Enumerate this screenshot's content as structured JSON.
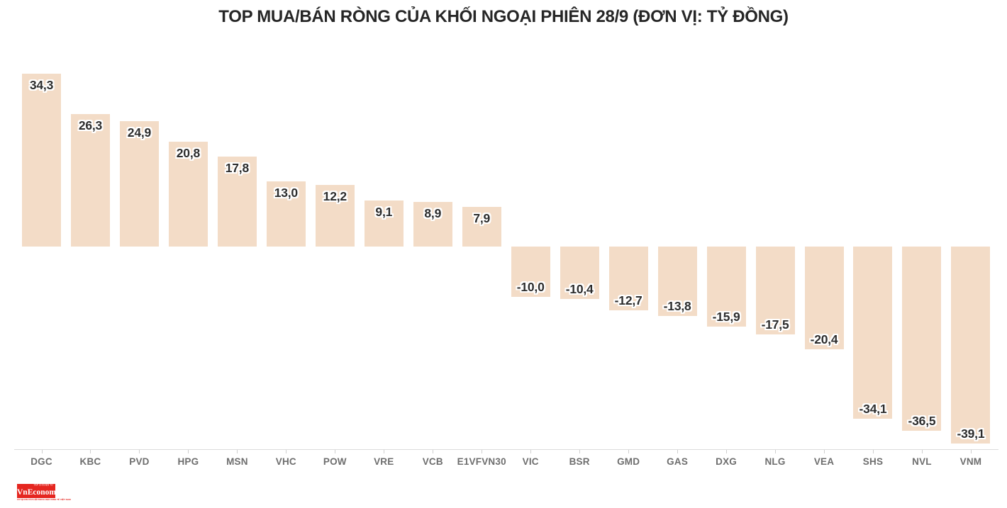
{
  "page": {
    "background_color": "#ffffff"
  },
  "chart_data": {
    "type": "bar",
    "title": "TOP MUA/BÁN RÒNG CỦA KHỐI NGOẠI PHIÊN 28/9 (ĐƠN VỊ: TỶ ĐỒNG)",
    "unit": "tỷ đồng",
    "orientation": "vertical",
    "grid": false,
    "legend": false,
    "baseline": 0,
    "ylim": [
      -39.1,
      34.3
    ],
    "categories": [
      "DGC",
      "KBC",
      "PVD",
      "HPG",
      "MSN",
      "VHC",
      "POW",
      "VRE",
      "VCB",
      "E1VFVN30",
      "VIC",
      "BSR",
      "GMD",
      "GAS",
      "DXG",
      "NLG",
      "VEA",
      "SHS",
      "NVL",
      "VNM"
    ],
    "values": [
      34.3,
      26.3,
      24.9,
      20.8,
      17.8,
      13.0,
      12.2,
      9.1,
      8.9,
      7.9,
      -10.0,
      -10.4,
      -12.7,
      -13.8,
      -15.9,
      -17.5,
      -20.4,
      -34.1,
      -36.5,
      -39.1
    ],
    "value_labels": [
      "34,3",
      "26,3",
      "24,9",
      "20,8",
      "17,8",
      "13,0",
      "12,2",
      "9,1",
      "8,9",
      "7,9",
      "-10,0",
      "-10,4",
      "-12,7",
      "-13,8",
      "-15,9",
      "-17,5",
      "-20,4",
      "-34,1",
      "-36,5",
      "-39,1"
    ],
    "colors": {
      "bar_fill": "#f3dcc7",
      "value_label": "#2d2d2d",
      "value_label_halo": "#ffffff",
      "category_label": "#6e6e6e",
      "axis_line": "#dcdcdc",
      "tick": "#cfcfcf",
      "title": "#262626"
    }
  },
  "logo": {
    "wordmark": "VnEconomy",
    "top_tagline": "TẠP CHÍ ĐIỆN TỬ",
    "bottom_tagline": "CƠ QUAN CỦA HỘI KHOA HỌC KINH TẾ VIỆT NAM",
    "brand_color": "#e52620"
  }
}
